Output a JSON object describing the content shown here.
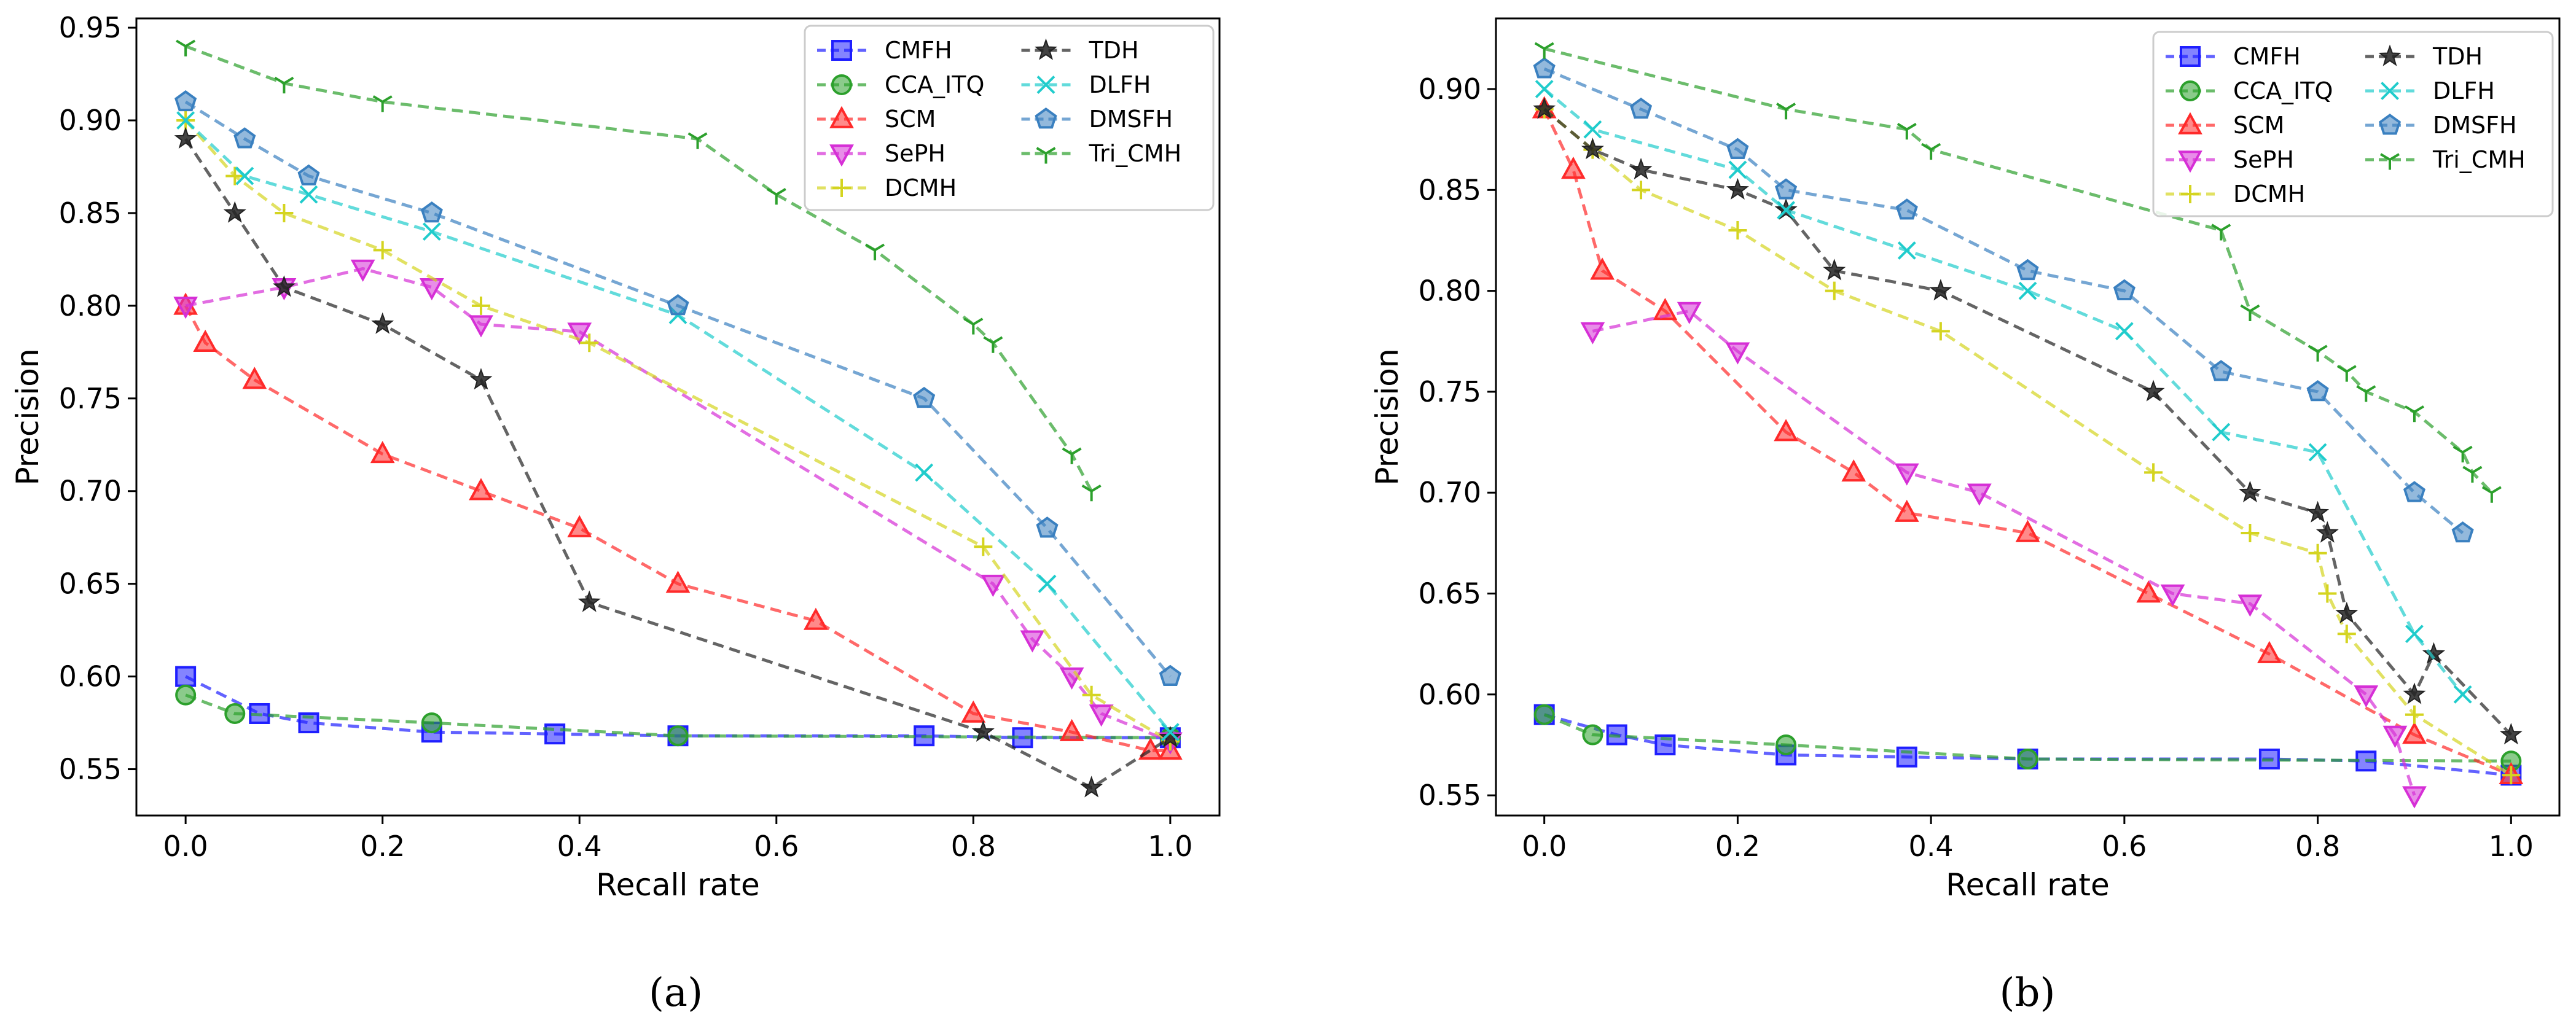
{
  "chart_data": [
    {
      "type": "line",
      "panel_label": "(a)",
      "xlabel": "Recall rate",
      "ylabel": "Precision",
      "xlim": [
        -0.05,
        1.05
      ],
      "ylim": [
        0.525,
        0.955
      ],
      "xticks": [
        0.0,
        0.2,
        0.4,
        0.6,
        0.8,
        1.0
      ],
      "xtick_labels": [
        "0.0",
        "0.2",
        "0.4",
        "0.6",
        "0.8",
        "1.0"
      ],
      "yticks": [
        0.55,
        0.6,
        0.65,
        0.7,
        0.75,
        0.8,
        0.85,
        0.9,
        0.95
      ],
      "ytick_labels": [
        "0.55",
        "0.60",
        "0.65",
        "0.70",
        "0.75",
        "0.80",
        "0.85",
        "0.90",
        "0.95"
      ],
      "legend_position": "top-right",
      "series": [
        {
          "name": "CMFH",
          "color": "#1f1fff",
          "marker": "square",
          "x": [
            0,
            0.075,
            0.125,
            0.25,
            0.375,
            0.5,
            0.75,
            0.85,
            1.0
          ],
          "y": [
            0.6,
            0.58,
            0.575,
            0.57,
            0.569,
            0.568,
            0.568,
            0.567,
            0.567
          ]
        },
        {
          "name": "CCA_ITQ",
          "color": "#2ca02c",
          "marker": "circle",
          "x": [
            0,
            0.05,
            0.25,
            0.5,
            1.0
          ],
          "y": [
            0.59,
            0.58,
            0.575,
            0.568,
            0.567
          ]
        },
        {
          "name": "SCM",
          "color": "#ff2a2a",
          "marker": "triangle-up",
          "x": [
            0,
            0.02,
            0.07,
            0.2,
            0.3,
            0.4,
            0.5,
            0.64,
            0.8,
            0.9,
            0.98,
            1.0
          ],
          "y": [
            0.8,
            0.78,
            0.76,
            0.72,
            0.7,
            0.68,
            0.65,
            0.63,
            0.58,
            0.57,
            0.56,
            0.56
          ]
        },
        {
          "name": "SePH",
          "color": "#d62fd6",
          "marker": "triangle-down",
          "x": [
            0,
            0.1,
            0.18,
            0.25,
            0.3,
            0.4,
            0.82,
            0.86,
            0.9,
            0.93,
            1.0
          ],
          "y": [
            0.8,
            0.81,
            0.82,
            0.81,
            0.79,
            0.786,
            0.65,
            0.62,
            0.6,
            0.58,
            0.565
          ]
        },
        {
          "name": "DCMH",
          "color": "#d4d420",
          "marker": "plus",
          "x": [
            0,
            0.05,
            0.1,
            0.2,
            0.3,
            0.41,
            0.81,
            0.92,
            1.0
          ],
          "y": [
            0.9,
            0.87,
            0.85,
            0.83,
            0.8,
            0.78,
            0.67,
            0.59,
            0.565
          ]
        },
        {
          "name": "TDH",
          "color": "#222222",
          "marker": "star",
          "x": [
            0,
            0.05,
            0.1,
            0.2,
            0.3,
            0.41,
            0.81,
            0.92,
            1.0
          ],
          "y": [
            0.89,
            0.85,
            0.81,
            0.79,
            0.76,
            0.64,
            0.57,
            0.54,
            0.567
          ]
        },
        {
          "name": "DLFH",
          "color": "#20cccc",
          "marker": "x",
          "x": [
            0,
            0.06,
            0.125,
            0.25,
            0.5,
            0.75,
            0.875,
            1.0
          ],
          "y": [
            0.9,
            0.87,
            0.86,
            0.84,
            0.795,
            0.71,
            0.65,
            0.57
          ]
        },
        {
          "name": "DMSFH",
          "color": "#3a80c0",
          "marker": "pentagon",
          "x": [
            0,
            0.06,
            0.125,
            0.25,
            0.5,
            0.75,
            0.875,
            1.0
          ],
          "y": [
            0.91,
            0.89,
            0.87,
            0.85,
            0.8,
            0.75,
            0.68,
            0.6
          ]
        },
        {
          "name": "Tri_CMH",
          "color": "#2ca02c",
          "marker": "tri-down",
          "x": [
            0,
            0.1,
            0.2,
            0.52,
            0.6,
            0.7,
            0.8,
            0.82,
            0.9,
            0.92
          ],
          "y": [
            0.94,
            0.92,
            0.91,
            0.89,
            0.86,
            0.83,
            0.79,
            0.78,
            0.72,
            0.7
          ]
        }
      ]
    },
    {
      "type": "line",
      "panel_label": "(b)",
      "xlabel": "Recall rate",
      "ylabel": "Precision",
      "xlim": [
        -0.05,
        1.05
      ],
      "ylim": [
        0.54,
        0.935
      ],
      "xticks": [
        0.0,
        0.2,
        0.4,
        0.6,
        0.8,
        1.0
      ],
      "xtick_labels": [
        "0.0",
        "0.2",
        "0.4",
        "0.6",
        "0.8",
        "1.0"
      ],
      "yticks": [
        0.55,
        0.6,
        0.65,
        0.7,
        0.75,
        0.8,
        0.85,
        0.9
      ],
      "ytick_labels": [
        "0.55",
        "0.60",
        "0.65",
        "0.70",
        "0.75",
        "0.80",
        "0.85",
        "0.90"
      ],
      "legend_position": "top-right",
      "series": [
        {
          "name": "CMFH",
          "color": "#1f1fff",
          "marker": "square",
          "x": [
            0,
            0.075,
            0.125,
            0.25,
            0.375,
            0.5,
            0.75,
            0.85,
            1.0
          ],
          "y": [
            0.59,
            0.58,
            0.575,
            0.57,
            0.569,
            0.568,
            0.568,
            0.567,
            0.56
          ]
        },
        {
          "name": "CCA_ITQ",
          "color": "#2ca02c",
          "marker": "circle",
          "x": [
            0,
            0.05,
            0.25,
            0.5,
            1.0
          ],
          "y": [
            0.59,
            0.58,
            0.575,
            0.568,
            0.567
          ]
        },
        {
          "name": "SCM",
          "color": "#ff2a2a",
          "marker": "triangle-up",
          "x": [
            0,
            0.03,
            0.06,
            0.125,
            0.25,
            0.32,
            0.375,
            0.5,
            0.625,
            0.75,
            0.9,
            1.0
          ],
          "y": [
            0.89,
            0.86,
            0.81,
            0.79,
            0.73,
            0.71,
            0.69,
            0.68,
            0.65,
            0.62,
            0.58,
            0.56
          ]
        },
        {
          "name": "SePH",
          "color": "#d62fd6",
          "marker": "triangle-down",
          "x": [
            0.05,
            0.15,
            0.2,
            0.375,
            0.45,
            0.65,
            0.73,
            0.85,
            0.88,
            0.9
          ],
          "y": [
            0.78,
            0.79,
            0.77,
            0.71,
            0.7,
            0.65,
            0.645,
            0.6,
            0.58,
            0.55
          ]
        },
        {
          "name": "DCMH",
          "color": "#d4d420",
          "marker": "plus",
          "x": [
            0,
            0.05,
            0.1,
            0.2,
            0.3,
            0.41,
            0.63,
            0.73,
            0.8,
            0.81,
            0.83,
            0.9,
            1.0
          ],
          "y": [
            0.89,
            0.87,
            0.85,
            0.83,
            0.8,
            0.78,
            0.71,
            0.68,
            0.67,
            0.65,
            0.63,
            0.59,
            0.56
          ]
        },
        {
          "name": "TDH",
          "color": "#222222",
          "marker": "star",
          "x": [
            0,
            0.05,
            0.1,
            0.2,
            0.25,
            0.3,
            0.41,
            0.63,
            0.73,
            0.8,
            0.81,
            0.83,
            0.9,
            0.92,
            1.0
          ],
          "y": [
            0.89,
            0.87,
            0.86,
            0.85,
            0.84,
            0.81,
            0.8,
            0.75,
            0.7,
            0.69,
            0.68,
            0.64,
            0.6,
            0.62,
            0.58
          ]
        },
        {
          "name": "DLFH",
          "color": "#20cccc",
          "marker": "x",
          "x": [
            0,
            0.05,
            0.2,
            0.25,
            0.375,
            0.5,
            0.6,
            0.7,
            0.8,
            0.9,
            0.95
          ],
          "y": [
            0.9,
            0.88,
            0.86,
            0.84,
            0.82,
            0.8,
            0.78,
            0.73,
            0.72,
            0.63,
            0.6
          ]
        },
        {
          "name": "DMSFH",
          "color": "#3a80c0",
          "marker": "pentagon",
          "x": [
            0,
            0.1,
            0.2,
            0.25,
            0.375,
            0.5,
            0.6,
            0.7,
            0.8,
            0.9,
            0.95
          ],
          "y": [
            0.91,
            0.89,
            0.87,
            0.85,
            0.84,
            0.81,
            0.8,
            0.76,
            0.75,
            0.7,
            0.68
          ]
        },
        {
          "name": "Tri_CMH",
          "color": "#2ca02c",
          "marker": "tri-down",
          "x": [
            0,
            0.25,
            0.375,
            0.4,
            0.7,
            0.73,
            0.8,
            0.83,
            0.85,
            0.9,
            0.95,
            0.96,
            0.98
          ],
          "y": [
            0.92,
            0.89,
            0.88,
            0.87,
            0.83,
            0.79,
            0.77,
            0.76,
            0.75,
            0.74,
            0.72,
            0.71,
            0.7
          ]
        }
      ]
    }
  ]
}
